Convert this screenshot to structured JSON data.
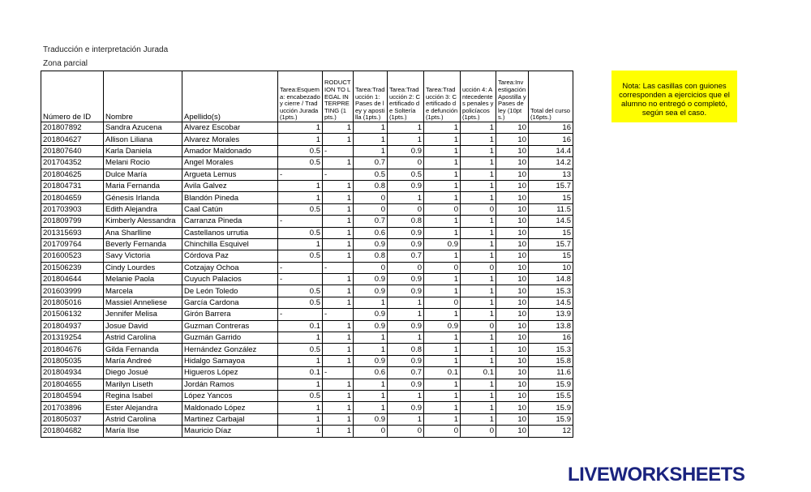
{
  "header": {
    "title": "Traducción e interpretación Jurada",
    "subtitle": "Zona parcial"
  },
  "note": "Nota: Las casillas con guiones corresponden a ejercicios que el alumno no entregó o completó, según sea el caso.",
  "logo": "LIVEWORKSHEETS",
  "table": {
    "columns": [
      "Número de ID",
      "Nombre",
      "Apellido(s)",
      "Tarea:Esquema: encabezado y cierre / Traducción Jurada (1pts.)",
      "RODUCTION TO LEGAL INTERPRETING (1 pts.)",
      "Tarea:Traducción 1: Pases de ley y apostilla (1pts.)",
      "Tarea:Traducción 2: Certificado de Soltería (1pts.)",
      "Tarea:Traducción 3: Certificado de defunción (1pts.)",
      "ucción 4: Antecedentes penales y policíacos (1pts.)",
      "Tarea:Investigación Apostilla y Pases de ley (10pts.)",
      "Total del curso (16pts.)"
    ],
    "rows": [
      [
        "201807892",
        "Sandra Azucena",
        "Alvarez Escobar",
        1,
        1,
        1,
        1,
        1,
        1,
        10,
        16
      ],
      [
        "201804627",
        "Allison Liliana",
        "Alvarez Morales",
        1,
        1,
        1,
        1,
        1,
        1,
        10,
        16
      ],
      [
        "201807640",
        "Karla Daniela",
        "Amador Maldonado",
        0.5,
        "-",
        1,
        0.9,
        1,
        1,
        10,
        14.4
      ],
      [
        "201704352",
        "Melani Rocio",
        "Angel Morales",
        0.5,
        1,
        0.7,
        0,
        1,
        1,
        10,
        14.2
      ],
      [
        "201804625",
        "Dulce María",
        "Argueta Lemus",
        "-",
        "-",
        0.5,
        0.5,
        1,
        1,
        10,
        13
      ],
      [
        "201804731",
        "Maria Fernanda",
        "Avila Galvez",
        1,
        1,
        0.8,
        0.9,
        1,
        1,
        10,
        15.7
      ],
      [
        "201804659",
        "Génesis Irlanda",
        "Blandón Pineda",
        1,
        1,
        0,
        1,
        1,
        1,
        10,
        15
      ],
      [
        "201703903",
        "Edith Alejandra",
        "Caal Catún",
        0.5,
        1,
        0,
        0,
        0,
        0,
        10,
        11.5
      ],
      [
        "201809799",
        "Kimberly Alessandra",
        "Carranza Pineda",
        "-",
        1,
        0.7,
        0.8,
        1,
        1,
        10,
        14.5
      ],
      [
        "201315693",
        "Ana Sharlline",
        "Castellanos urrutia",
        0.5,
        1,
        0.6,
        0.9,
        1,
        1,
        10,
        15
      ],
      [
        "201709764",
        "Beverly Fernanda",
        "Chinchilla Esquivel",
        1,
        1,
        0.9,
        0.9,
        0.9,
        1,
        10,
        15.7
      ],
      [
        "201600523",
        "Savy Victoria",
        "Córdova Paz",
        0.5,
        1,
        0.8,
        0.7,
        1,
        1,
        10,
        15
      ],
      [
        "201506239",
        "Cindy Lourdes",
        "Cotzajay Ochoa",
        "-",
        "-",
        0,
        0,
        0,
        0,
        10,
        10
      ],
      [
        "201804644",
        "Melanie Paola",
        "Cuyuch Palacios",
        "-",
        1,
        0.9,
        0.9,
        1,
        1,
        10,
        14.8
      ],
      [
        "201603999",
        "Marcela",
        "De León Toledo",
        0.5,
        1,
        0.9,
        0.9,
        1,
        1,
        10,
        15.3
      ],
      [
        "201805016",
        "Massiel Anneliese",
        "García Cardona",
        0.5,
        1,
        1,
        1,
        0,
        1,
        10,
        14.5
      ],
      [
        "201506132",
        "Jennifer Melisa",
        "Girón Barrera",
        "-",
        "-",
        0.9,
        1,
        1,
        1,
        10,
        13.9
      ],
      [
        "201804937",
        "Josue David",
        "Guzman Contreras",
        0.1,
        1,
        0.9,
        0.9,
        0.9,
        0,
        10,
        13.8
      ],
      [
        "201319254",
        "Astrid Carolina",
        "Guzmán Garrido",
        1,
        1,
        1,
        1,
        1,
        1,
        10,
        16
      ],
      [
        "201804676",
        "Gilda Fernanda",
        "Hernández González",
        0.5,
        1,
        1,
        0.8,
        1,
        1,
        10,
        15.3
      ],
      [
        "201805035",
        "María Andreé",
        "Hidalgo Samayoa",
        1,
        1,
        0.9,
        0.9,
        1,
        1,
        10,
        15.8
      ],
      [
        "201804934",
        "Diego Josué",
        "Higueros López",
        0.1,
        "-",
        0.6,
        0.7,
        0.1,
        0.1,
        10,
        11.6
      ],
      [
        "201804655",
        "Marilyn Liseth",
        "Jordán Ramos",
        1,
        1,
        1,
        0.9,
        1,
        1,
        10,
        15.9
      ],
      [
        "201804594",
        "Regina Isabel",
        "López Yancos",
        0.5,
        1,
        1,
        1,
        1,
        1,
        10,
        15.5
      ],
      [
        "201703896",
        "Ester Alejandra",
        "Maldonado López",
        1,
        1,
        1,
        0.9,
        1,
        1,
        10,
        15.9
      ],
      [
        "201805037",
        "Astrid Carolina",
        "Martinez Carbajal",
        1,
        1,
        0.9,
        1,
        1,
        1,
        10,
        15.9
      ],
      [
        "201804682",
        "María Ilse",
        "Mauricio Díaz",
        1,
        1,
        0,
        0,
        0,
        0,
        10,
        12
      ]
    ]
  }
}
